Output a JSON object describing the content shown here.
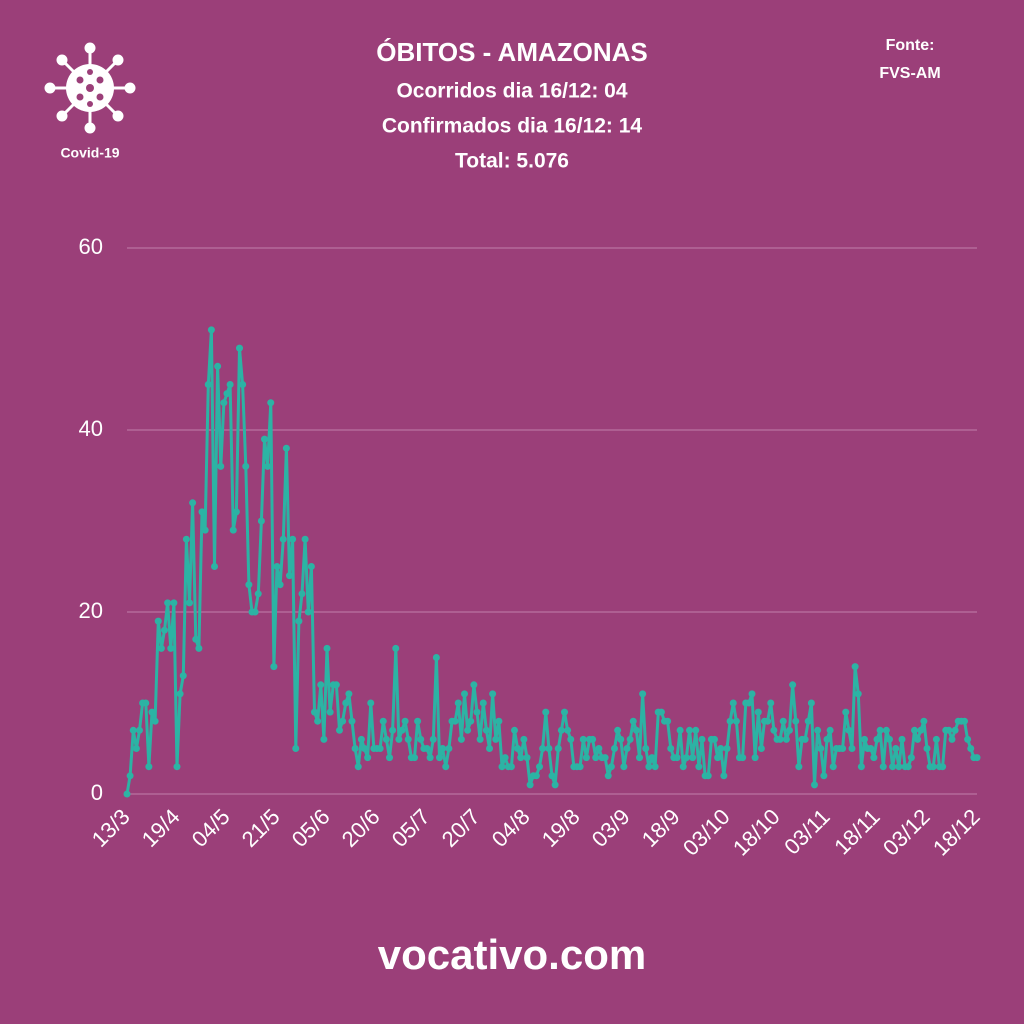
{
  "chart_data": {
    "type": "line",
    "title": "ÓBITOS - AMAZONAS",
    "subtitle": [
      "Ocorridos dia 16/12: 04",
      "Confirmados dia 16/12: 14",
      "Total: 5.076"
    ],
    "source": [
      "Fonte:",
      "FVS-AM"
    ],
    "logo_label": "Covid-19",
    "footer": "vocativo.com",
    "color": "#2cb3a4",
    "grid": true,
    "ylim": [
      0,
      60
    ],
    "yticks": [
      0,
      20,
      40,
      60
    ],
    "categories": [
      "13/3",
      null,
      null,
      null,
      null,
      null,
      null,
      null,
      null,
      null,
      null,
      null,
      null,
      null,
      null,
      null,
      "19/4",
      null,
      null,
      null,
      null,
      null,
      null,
      null,
      null,
      null,
      null,
      null,
      null,
      null,
      null,
      null,
      "04/5",
      null,
      null,
      null,
      null,
      null,
      null,
      null,
      null,
      null,
      null,
      null,
      null,
      null,
      null,
      null,
      "21/5",
      null,
      null,
      null,
      null,
      null,
      null,
      null,
      null,
      null,
      null,
      null,
      null,
      null,
      null,
      null,
      "05/6",
      null,
      null,
      null,
      null,
      null,
      null,
      null,
      null,
      null,
      null,
      null,
      null,
      null,
      null,
      null,
      "20/6",
      null,
      null,
      null,
      null,
      null,
      null,
      null,
      null,
      null,
      null,
      null,
      null,
      null,
      null,
      null,
      "05/7",
      null,
      null,
      null,
      null,
      null,
      null,
      null,
      null,
      null,
      null,
      null,
      null,
      null,
      null,
      null,
      "20/7",
      null,
      null,
      null,
      null,
      null,
      null,
      null,
      null,
      null,
      null,
      null,
      null,
      null,
      null,
      null,
      "04/8",
      null,
      null,
      null,
      null,
      null,
      null,
      null,
      null,
      null,
      null,
      null,
      null,
      null,
      null,
      null,
      "19/8",
      null,
      null,
      null,
      null,
      null,
      null,
      null,
      null,
      null,
      null,
      null,
      null,
      null,
      null,
      null,
      "03/9",
      null,
      null,
      null,
      null,
      null,
      null,
      null,
      null,
      null,
      null,
      null,
      null,
      null,
      null,
      null,
      "18/9",
      null,
      null,
      null,
      null,
      null,
      null,
      null,
      null,
      null,
      null,
      null,
      null,
      null,
      null,
      null,
      "03/10",
      null,
      null,
      null,
      null,
      null,
      null,
      null,
      null,
      null,
      null,
      null,
      null,
      null,
      null,
      null,
      "18/10",
      null,
      null,
      null,
      null,
      null,
      null,
      null,
      null,
      null,
      null,
      null,
      null,
      null,
      null,
      null,
      "03/11",
      null,
      null,
      null,
      null,
      null,
      null,
      null,
      null,
      null,
      null,
      null,
      null,
      null,
      null,
      null,
      "18/11",
      null,
      null,
      null,
      null,
      null,
      null,
      null,
      null,
      null,
      null,
      null,
      null,
      null,
      null,
      null,
      "03/12",
      null,
      null,
      null,
      null,
      null,
      null,
      null,
      null,
      null,
      null,
      null,
      null,
      null,
      null,
      null,
      "18/12"
    ],
    "values": [
      0,
      2,
      7,
      5,
      7,
      10,
      10,
      3,
      9,
      8,
      19,
      16,
      18,
      21,
      16,
      21,
      3,
      11,
      13,
      28,
      21,
      32,
      17,
      16,
      31,
      29,
      45,
      51,
      25,
      47,
      36,
      43,
      44,
      45,
      29,
      31,
      49,
      45,
      36,
      23,
      20,
      20,
      22,
      30,
      39,
      36,
      43,
      14,
      25,
      23,
      28,
      38,
      24,
      28,
      5,
      19,
      22,
      28,
      20,
      25,
      9,
      8,
      12,
      6,
      16,
      9,
      12,
      12,
      7,
      8,
      10,
      11,
      8,
      5,
      3,
      6,
      5,
      4,
      10,
      5,
      5,
      5,
      8,
      6,
      4,
      7,
      16,
      6,
      7,
      8,
      6,
      4,
      4,
      8,
      6,
      5,
      5,
      4,
      6,
      15,
      4,
      5,
      3,
      5,
      8,
      8,
      10,
      6,
      11,
      7,
      8,
      12,
      9,
      6,
      10,
      7,
      5,
      11,
      6,
      8,
      3,
      4,
      3,
      3,
      7,
      5,
      4,
      6,
      4,
      1,
      2,
      2,
      3,
      5,
      9,
      5,
      2,
      1,
      5,
      7,
      9,
      7,
      6,
      3,
      3,
      3,
      6,
      4,
      6,
      6,
      4,
      5,
      4,
      4,
      2,
      3,
      5,
      7,
      6,
      3,
      5,
      6,
      8,
      7,
      4,
      11,
      5,
      3,
      4,
      3,
      9,
      9,
      8,
      8,
      5,
      4,
      4,
      7,
      3,
      4,
      7,
      4,
      7,
      3,
      6,
      2,
      2,
      6,
      6,
      4,
      5,
      2,
      5,
      8,
      10,
      8,
      4,
      4,
      10,
      10,
      11,
      4,
      9,
      5,
      8,
      8,
      10,
      7,
      6,
      6,
      8,
      6,
      7,
      12,
      8,
      3,
      6,
      6,
      8,
      10,
      1,
      7,
      5,
      2,
      6,
      7,
      3,
      5,
      5,
      5,
      9,
      7,
      5,
      14,
      11,
      3,
      6,
      5,
      5,
      4,
      6,
      7,
      3,
      7,
      6,
      3,
      5,
      3,
      6,
      3,
      3,
      4,
      7,
      6,
      7,
      8,
      5,
      3,
      3,
      6,
      3,
      3,
      7,
      7,
      6,
      7,
      8,
      8,
      8,
      6,
      5,
      4,
      4
    ]
  }
}
